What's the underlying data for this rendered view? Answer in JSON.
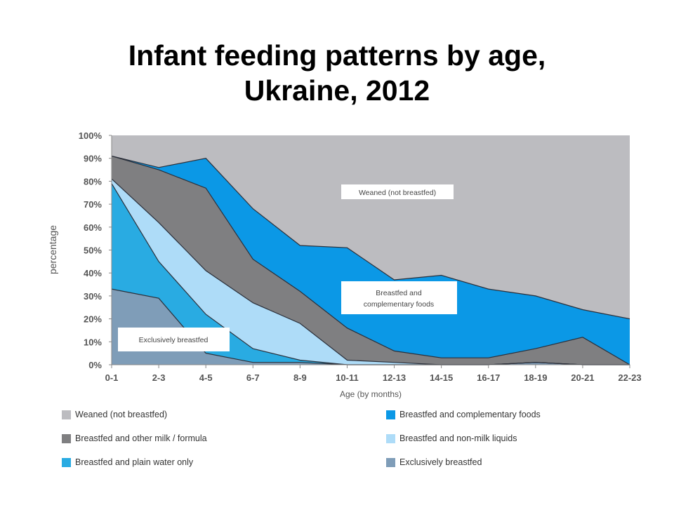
{
  "title_line1": "Infant feeding patterns by age,",
  "title_line2": "Ukraine, 2012",
  "chart_data": {
    "type": "area",
    "stacked": true,
    "title": "Infant feeding patterns by age, Ukraine, 2012",
    "xlabel": "Age (by months)",
    "ylabel": "percentage",
    "ylim": [
      0,
      100
    ],
    "y_ticks": [
      "0%",
      "10%",
      "20%",
      "30%",
      "40%",
      "50%",
      "60%",
      "70%",
      "80%",
      "90%",
      "100%"
    ],
    "categories": [
      "0-1",
      "2-3",
      "4-5",
      "6-7",
      "8-9",
      "10-11",
      "12-13",
      "14-15",
      "16-17",
      "18-19",
      "20-21",
      "22-23"
    ],
    "grid": false,
    "series": [
      {
        "name": "Exclusively breastfed",
        "color": "#7f9db8",
        "values": [
          33,
          29,
          5,
          1,
          1,
          0,
          0,
          0,
          0,
          1,
          0,
          0
        ]
      },
      {
        "name": "Breastfed and plain water only",
        "color": "#29abe2",
        "values": [
          46,
          16,
          17,
          6,
          1,
          0,
          0,
          0,
          0,
          0,
          0,
          0
        ]
      },
      {
        "name": "Breastfed and non-milk liquids",
        "color": "#aedcf8",
        "values": [
          2,
          17,
          19,
          20,
          16,
          2,
          1,
          0,
          0,
          0,
          0,
          0
        ]
      },
      {
        "name": "Breastfed and other milk / formula",
        "color": "#7f7f81",
        "values": [
          10,
          23,
          36,
          19,
          14,
          14,
          5,
          3,
          3,
          6,
          12,
          0
        ]
      },
      {
        "name": "Breastfed and complementary foods",
        "color": "#0b98e6",
        "values": [
          0,
          1,
          13,
          22,
          20,
          35,
          31,
          36,
          30,
          23,
          12,
          20
        ]
      },
      {
        "name": "Weaned (not breastfed)",
        "color": "#bcbcc0",
        "values": [
          9,
          14,
          10,
          32,
          48,
          49,
          63,
          61,
          67,
          70,
          76,
          80
        ]
      }
    ],
    "annotations": [
      {
        "text": "Weaned (not breastfed)"
      },
      {
        "text_line1": "Breastfed and",
        "text_line2": "complementary foods"
      },
      {
        "text": "Exclusively breastfed"
      }
    ],
    "legend": {
      "placement": "bottom",
      "items": [
        {
          "label": "Weaned (not breastfed)",
          "color": "#bcbcc0"
        },
        {
          "label": "Breastfed and complementary foods",
          "color": "#0b98e6"
        },
        {
          "label": "Breastfed and other milk / formula",
          "color": "#7f7f81"
        },
        {
          "label": "Breastfed and non-milk liquids",
          "color": "#aedcf8"
        },
        {
          "label": "Breastfed and plain water only",
          "color": "#29abe2"
        },
        {
          "label": "Exclusively breastfed",
          "color": "#7f9db8"
        }
      ]
    }
  }
}
